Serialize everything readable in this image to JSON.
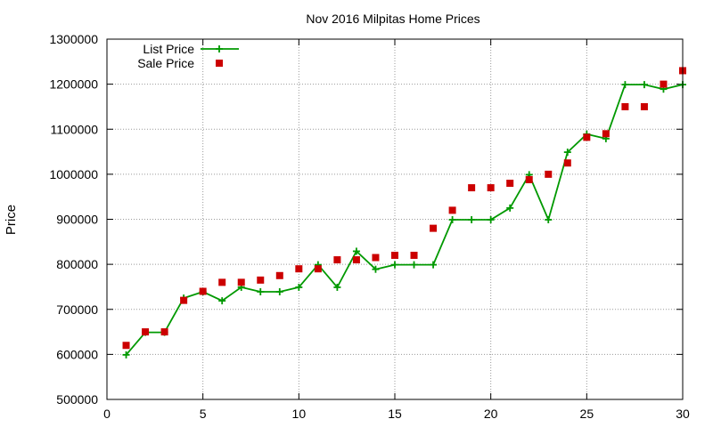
{
  "chart_data": {
    "type": "line",
    "title": "Nov 2016 Milpitas Home Prices",
    "xlabel": "",
    "ylabel": "Price",
    "xlim": [
      0,
      30
    ],
    "ylim": [
      500000,
      1300000
    ],
    "xticks": [
      0,
      5,
      10,
      15,
      20,
      25,
      30
    ],
    "yticks": [
      500000,
      600000,
      700000,
      800000,
      900000,
      1000000,
      1100000,
      1200000,
      1300000
    ],
    "grid": true,
    "legend_position": "top-left",
    "series": [
      {
        "name": "List Price",
        "style": "line+plus-markers",
        "color": "#009900",
        "x": [
          1,
          2,
          3,
          4,
          5,
          6,
          7,
          8,
          9,
          10,
          11,
          12,
          13,
          14,
          15,
          16,
          17,
          18,
          19,
          20,
          21,
          22,
          23,
          24,
          25,
          26,
          27,
          28,
          29,
          30
        ],
        "values": [
          599000,
          649000,
          649000,
          725000,
          739000,
          719000,
          749000,
          739000,
          739000,
          749000,
          799000,
          749000,
          829000,
          789000,
          799000,
          799000,
          799000,
          899000,
          899000,
          899000,
          925000,
          999000,
          899000,
          1049000,
          1089000,
          1079000,
          1199000,
          1199000,
          1189000,
          1199000
        ]
      },
      {
        "name": "Sale Price",
        "style": "square-markers",
        "color": "#cc0000",
        "x": [
          1,
          2,
          3,
          4,
          5,
          6,
          7,
          8,
          9,
          10,
          11,
          12,
          13,
          14,
          15,
          16,
          17,
          18,
          19,
          20,
          21,
          22,
          23,
          24,
          25,
          26,
          27,
          28,
          29,
          30
        ],
        "values": [
          620000,
          650000,
          650000,
          720000,
          740000,
          760000,
          760000,
          765000,
          775000,
          790000,
          790000,
          810000,
          810000,
          815000,
          820000,
          820000,
          880000,
          920000,
          970000,
          970000,
          980000,
          988000,
          1000000,
          1025000,
          1082000,
          1090000,
          1150000,
          1150000,
          1200000,
          1230000
        ]
      }
    ]
  }
}
